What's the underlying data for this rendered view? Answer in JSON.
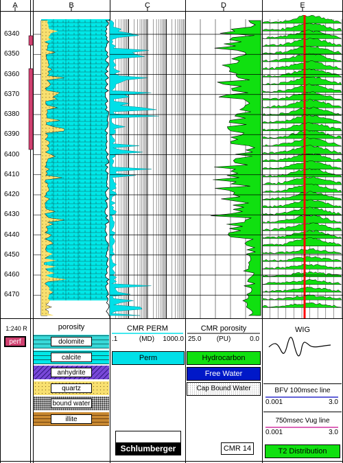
{
  "tracks": {
    "a": {
      "header": "A",
      "scale": "1:240 R",
      "perf_label": "perf"
    },
    "b": {
      "header": "B",
      "title": "porosity",
      "legend": [
        "dolomite",
        "calcite",
        "anhydrite",
        "quartz",
        "bound water",
        "illite"
      ]
    },
    "c": {
      "header": "C",
      "title": "CMR PERM",
      "scale_min": ".1",
      "scale_unit": "(MD)",
      "scale_max": "1000.0",
      "legend": [
        "Perm"
      ],
      "logo": "Schlumberger"
    },
    "d": {
      "header": "D",
      "title": "CMR porosity",
      "scale_min": "25.0",
      "scale_unit": "(PU)",
      "scale_max": "0.0",
      "legend": [
        "Hydrocarbon",
        "Free Water",
        "Cap Bound Water"
      ],
      "tool": "CMR 14"
    },
    "e": {
      "header": "E",
      "title": "WIG",
      "bfv_label": "BFV 100msec line",
      "bfv_min": "0.001",
      "bfv_max": "3.0",
      "vug_label": "750msec Vug line",
      "vug_min": "0.001",
      "vug_max": "3.0",
      "t2_label": "T2 Distribution"
    }
  },
  "depths": [
    "6340",
    "6350",
    "6360",
    "6370",
    "6380",
    "6390",
    "6400",
    "6410",
    "6420",
    "6430",
    "6440",
    "6450",
    "6460",
    "6470"
  ],
  "colors": {
    "dolomite": "#38d8d8",
    "calcite": "#00e8e8",
    "anhydrite": "#7040d0",
    "quartz": "#f8e070",
    "illite": "#c88830",
    "perf": "#d04070",
    "hydrocarbon": "#10e010",
    "free_water": "#0018c8",
    "cap_bound_water": "#d8d8d8",
    "perm": "#00e0e8",
    "wig_line": "#ff0000",
    "bfv_line": "#0000c0",
    "vug_line": "#d030a0"
  }
}
